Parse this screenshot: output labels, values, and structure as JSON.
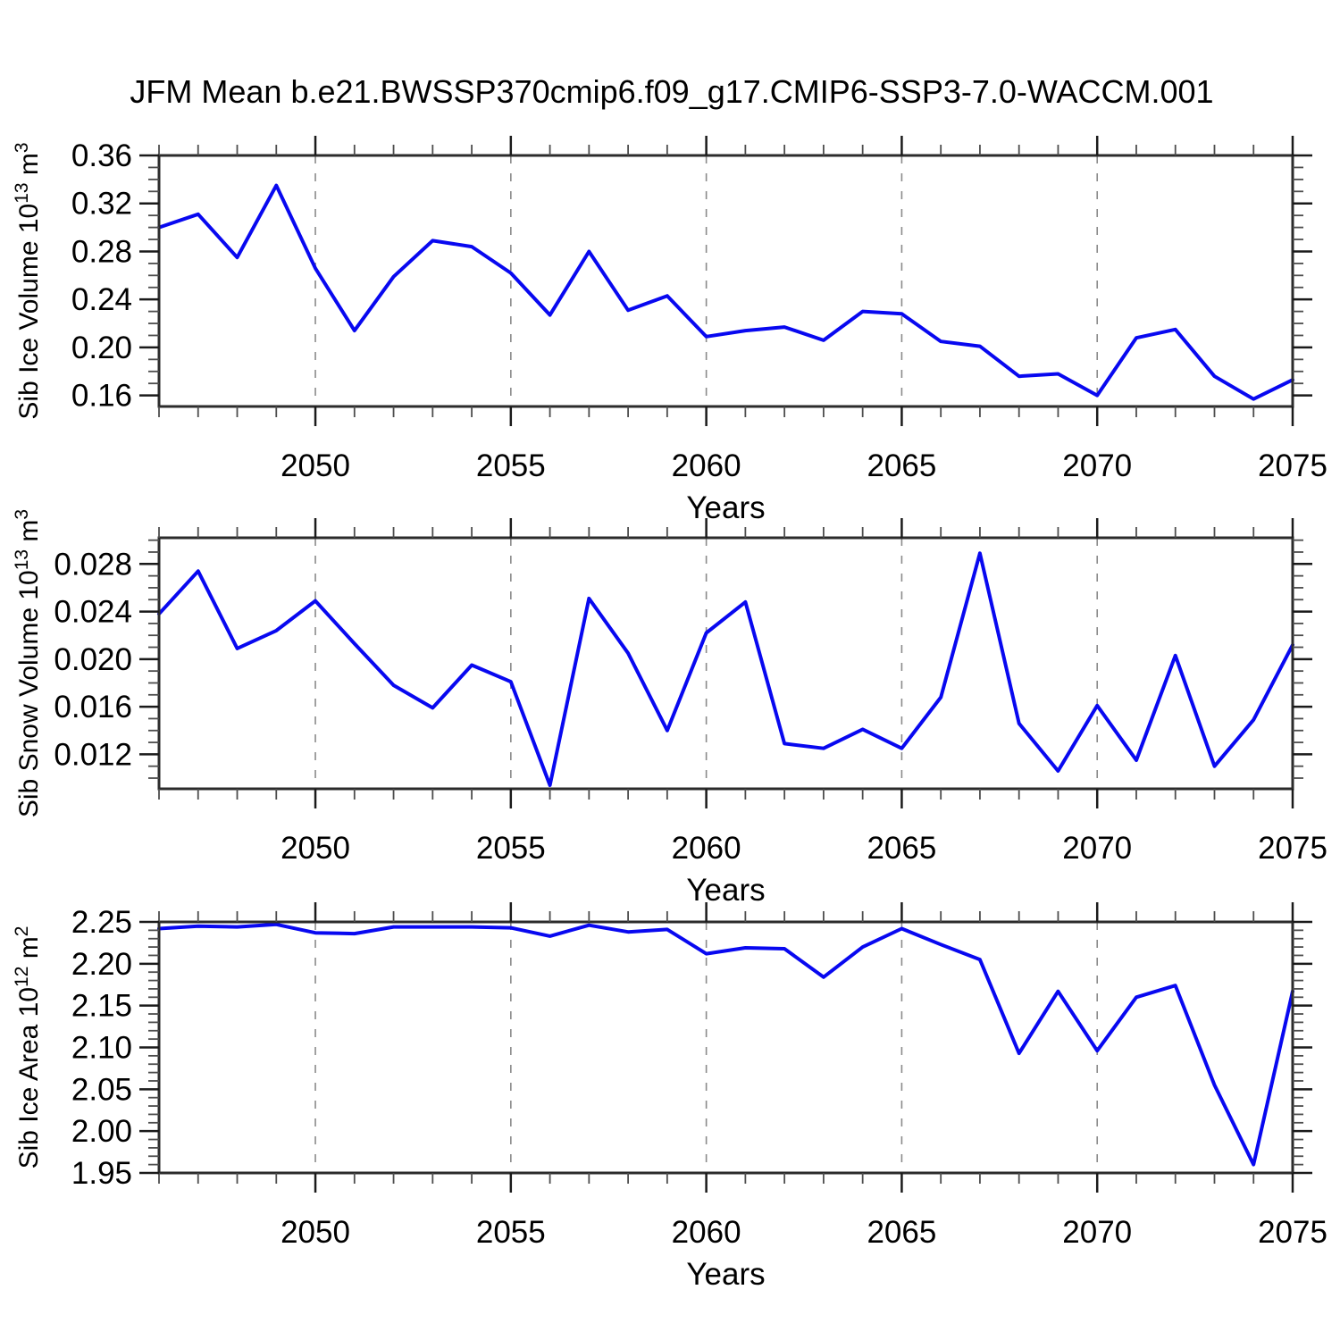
{
  "title": "JFM Mean b.e21.BWSSP370cmip6.f09_g17.CMIP6-SSP3-7.0-WACCM.001",
  "colors": {
    "line": "#0808f0",
    "frame": "#2b2b2b",
    "major_tick": "#1a1a1a",
    "minor_tick": "#4d4d4d",
    "grid": "#8a8a8a",
    "text": "#000000",
    "background": "#ffffff"
  },
  "chart_data": [
    {
      "type": "line",
      "panel": "sib-ice-volume",
      "ylabel_parts": {
        "pre": "Sib Ice Volume 10",
        "sup1": "13",
        "mid": " m",
        "sup2": "3"
      },
      "xlabel": "Years",
      "x_range": [
        2046,
        2075
      ],
      "xtick_labels": [
        "2050",
        "2055",
        "2060",
        "2065",
        "2070",
        "2075"
      ],
      "xticks_major": [
        2050,
        2055,
        2060,
        2065,
        2070,
        2075
      ],
      "grid_years": [
        2050,
        2055,
        2060,
        2065,
        2070
      ],
      "ylim": [
        0.1508,
        0.36
      ],
      "yticks_major": [
        0.16,
        0.2,
        0.24,
        0.28,
        0.32,
        0.36
      ],
      "ytick_labels": [
        "0.16",
        "0.20",
        "0.24",
        "0.28",
        "0.32",
        "0.36"
      ],
      "yminor": {
        "start": 0.16,
        "end": 0.36,
        "step": 0.01
      },
      "x": [
        2046,
        2047,
        2048,
        2049,
        2050,
        2051,
        2052,
        2053,
        2054,
        2055,
        2056,
        2057,
        2058,
        2059,
        2060,
        2061,
        2062,
        2063,
        2064,
        2065,
        2066,
        2067,
        2068,
        2069,
        2070,
        2071,
        2072,
        2073,
        2074,
        2075
      ],
      "values": [
        0.3,
        0.311,
        0.275,
        0.335,
        0.266,
        0.214,
        0.259,
        0.289,
        0.284,
        0.262,
        0.227,
        0.28,
        0.231,
        0.243,
        0.209,
        0.214,
        0.217,
        0.206,
        0.23,
        0.228,
        0.205,
        0.201,
        0.176,
        0.178,
        0.16,
        0.208,
        0.215,
        0.176,
        0.157,
        0.173
      ]
    },
    {
      "type": "line",
      "panel": "sib-snow-volume",
      "ylabel_parts": {
        "pre": "Sib Snow Volume 10",
        "sup1": "13",
        "mid": " m",
        "sup2": "3"
      },
      "xlabel": "Years",
      "x_range": [
        2046,
        2075
      ],
      "xtick_labels": [
        "2050",
        "2055",
        "2060",
        "2065",
        "2070",
        "2075"
      ],
      "xticks_major": [
        2050,
        2055,
        2060,
        2065,
        2070,
        2075
      ],
      "grid_years": [
        2050,
        2055,
        2060,
        2065,
        2070
      ],
      "ylim": [
        0.0091,
        0.0302
      ],
      "yticks_major": [
        0.012,
        0.016,
        0.02,
        0.024,
        0.028
      ],
      "ytick_labels": [
        "0.012",
        "0.016",
        "0.020",
        "0.024",
        "0.028"
      ],
      "yminor": {
        "start": 0.01,
        "end": 0.03,
        "step": 0.001
      },
      "x": [
        2046,
        2047,
        2048,
        2049,
        2050,
        2051,
        2052,
        2053,
        2054,
        2055,
        2056,
        2057,
        2058,
        2059,
        2060,
        2061,
        2062,
        2063,
        2064,
        2065,
        2066,
        2067,
        2068,
        2069,
        2070,
        2071,
        2072,
        2073,
        2074,
        2075
      ],
      "values": [
        0.0238,
        0.0274,
        0.0209,
        0.0224,
        0.0249,
        0.0213,
        0.0178,
        0.0159,
        0.0195,
        0.0181,
        0.0094,
        0.0251,
        0.0205,
        0.014,
        0.0222,
        0.0248,
        0.0129,
        0.0125,
        0.0141,
        0.0125,
        0.0168,
        0.0289,
        0.0146,
        0.0106,
        0.0161,
        0.0115,
        0.0203,
        0.011,
        0.0149,
        0.0212
      ]
    },
    {
      "type": "line",
      "panel": "sib-ice-area",
      "ylabel_parts": {
        "pre": "Sib Ice Area 10",
        "sup1": "12",
        "mid": " m",
        "sup2": "2"
      },
      "xlabel": "Years",
      "x_range": [
        2046,
        2075
      ],
      "xtick_labels": [
        "2050",
        "2055",
        "2060",
        "2065",
        "2070",
        "2075"
      ],
      "xticks_major": [
        2050,
        2055,
        2060,
        2065,
        2070,
        2075
      ],
      "grid_years": [
        2050,
        2055,
        2060,
        2065,
        2070
      ],
      "ylim": [
        1.95,
        2.25
      ],
      "yticks_major": [
        1.95,
        2.0,
        2.05,
        2.1,
        2.15,
        2.2,
        2.25
      ],
      "ytick_labels": [
        "1.95",
        "2.00",
        "2.05",
        "2.10",
        "2.15",
        "2.20",
        "2.25"
      ],
      "yminor": {
        "start": 1.95,
        "end": 2.25,
        "step": 0.01
      },
      "x": [
        2046,
        2047,
        2048,
        2049,
        2050,
        2051,
        2052,
        2053,
        2054,
        2055,
        2056,
        2057,
        2058,
        2059,
        2060,
        2061,
        2062,
        2063,
        2064,
        2065,
        2066,
        2067,
        2068,
        2069,
        2070,
        2071,
        2072,
        2073,
        2074,
        2075
      ],
      "values": [
        2.242,
        2.245,
        2.244,
        2.247,
        2.237,
        2.236,
        2.244,
        2.244,
        2.244,
        2.243,
        2.233,
        2.246,
        2.238,
        2.241,
        2.212,
        2.219,
        2.218,
        2.184,
        2.22,
        2.242,
        2.223,
        2.205,
        2.093,
        2.167,
        2.096,
        2.16,
        2.174,
        2.055,
        1.96,
        2.167
      ]
    }
  ]
}
